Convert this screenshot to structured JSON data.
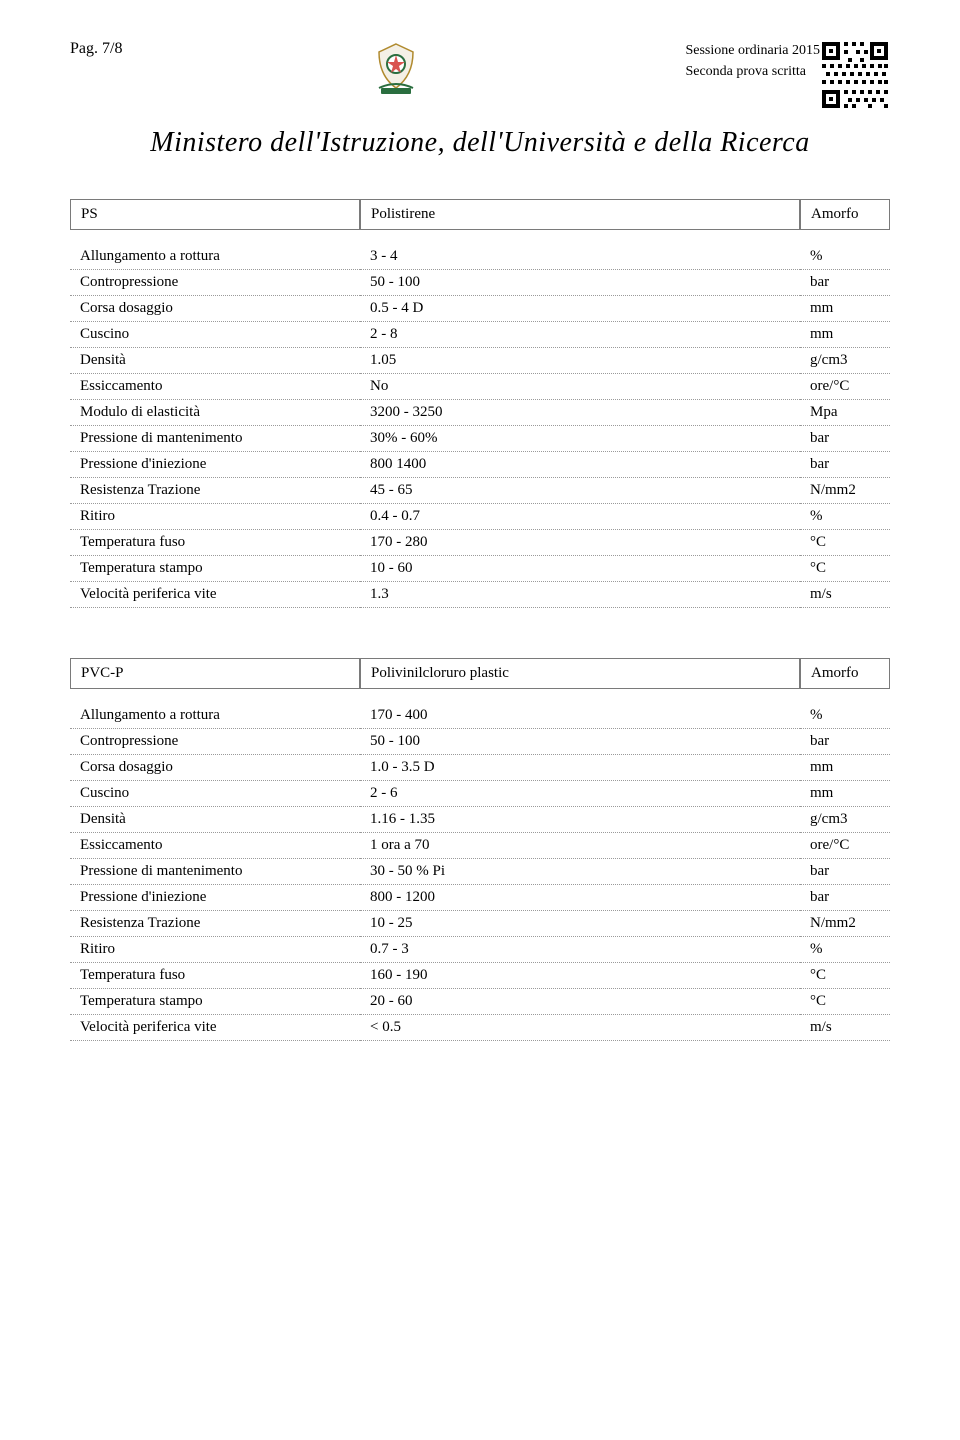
{
  "header": {
    "page": "Pag. 7/8",
    "session": "Sessione ordinaria 2015",
    "exam": "Seconda prova scritta"
  },
  "ministry": "Ministero dell'Istruzione, dell'Università e della Ricerca",
  "tables": [
    {
      "code": "PS",
      "desc": "Polistirene",
      "state": "Amorfo",
      "rows": [
        {
          "label": "Allungamento a rottura",
          "value": "3 - 4",
          "unit": "%"
        },
        {
          "label": "Contropressione",
          "value": "50 - 100",
          "unit": "bar"
        },
        {
          "label": "Corsa dosaggio",
          "value": "0.5 - 4 D",
          "unit": "mm"
        },
        {
          "label": "Cuscino",
          "value": "2 - 8",
          "unit": "mm"
        },
        {
          "label": "Densità",
          "value": "1.05",
          "unit": "g/cm3"
        },
        {
          "label": "Essiccamento",
          "value": "No",
          "unit": "ore/°C"
        },
        {
          "label": "Modulo di elasticità",
          "value": "3200 - 3250",
          "unit": "Mpa"
        },
        {
          "label": "Pressione di mantenimento",
          "value": "30% - 60%",
          "unit": "bar"
        },
        {
          "label": "Pressione d'iniezione",
          "value": "800 1400",
          "unit": "bar"
        },
        {
          "label": "Resistenza Trazione",
          "value": "45 - 65",
          "unit": "N/mm2"
        },
        {
          "label": "Ritiro",
          "value": "0.4 - 0.7",
          "unit": "%"
        },
        {
          "label": "Temperatura fuso",
          "value": "170 - 280",
          "unit": "°C"
        },
        {
          "label": "Temperatura stampo",
          "value": "10 - 60",
          "unit": "°C"
        },
        {
          "label": "Velocità periferica vite",
          "value": "1.3",
          "unit": "m/s"
        }
      ]
    },
    {
      "code": "PVC-P",
      "desc": "Polivinilcloruro plastic",
      "state": "Amorfo",
      "rows": [
        {
          "label": "Allungamento a rottura",
          "value": "170 - 400",
          "unit": "%"
        },
        {
          "label": "Contropressione",
          "value": "50 - 100",
          "unit": "bar"
        },
        {
          "label": "Corsa dosaggio",
          "value": "1.0 - 3.5 D",
          "unit": "mm"
        },
        {
          "label": "Cuscino",
          "value": "2 - 6",
          "unit": "mm"
        },
        {
          "label": "Densità",
          "value": "1.16 - 1.35",
          "unit": "g/cm3"
        },
        {
          "label": "Essiccamento",
          "value": "1 ora a 70",
          "unit": "ore/°C"
        },
        {
          "label": "Pressione di mantenimento",
          "value": "30 - 50 % Pi",
          "unit": "bar"
        },
        {
          "label": "Pressione d'iniezione",
          "value": "800 - 1200",
          "unit": "bar"
        },
        {
          "label": "Resistenza Trazione",
          "value": "10 - 25",
          "unit": "N/mm2"
        },
        {
          "label": "Ritiro",
          "value": "0.7 - 3",
          "unit": "%"
        },
        {
          "label": "Temperatura fuso",
          "value": "160 - 190",
          "unit": "°C"
        },
        {
          "label": "Temperatura stampo",
          "value": "20 - 60",
          "unit": "°C"
        },
        {
          "label": "Velocità periferica vite",
          "value": "< 0.5",
          "unit": "m/s"
        }
      ]
    }
  ]
}
